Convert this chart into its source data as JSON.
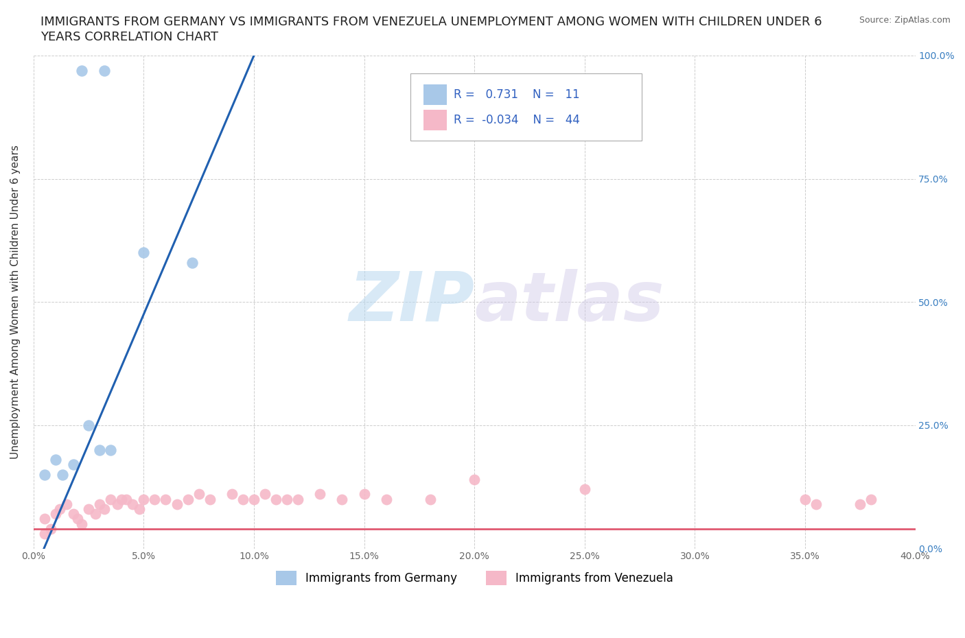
{
  "title_line1": "IMMIGRANTS FROM GERMANY VS IMMIGRANTS FROM VENEZUELA UNEMPLOYMENT AMONG WOMEN WITH CHILDREN UNDER 6",
  "title_line2": "YEARS CORRELATION CHART",
  "source": "Source: ZipAtlas.com",
  "ylabel": "Unemployment Among Women with Children Under 6 years",
  "xlim": [
    0.0,
    0.4
  ],
  "ylim": [
    0.0,
    1.0
  ],
  "xticks": [
    0.0,
    0.05,
    0.1,
    0.15,
    0.2,
    0.25,
    0.3,
    0.35,
    0.4
  ],
  "xticklabels": [
    "0.0%",
    "5.0%",
    "10.0%",
    "15.0%",
    "20.0%",
    "25.0%",
    "30.0%",
    "35.0%",
    "40.0%"
  ],
  "yticks": [
    0.0,
    0.25,
    0.5,
    0.75,
    1.0
  ],
  "yticklabels": [
    "0.0%",
    "25.0%",
    "50.0%",
    "75.0%",
    "100.0%"
  ],
  "germany_x": [
    0.022,
    0.032,
    0.05,
    0.072,
    0.025,
    0.03,
    0.035,
    0.013,
    0.01,
    0.005,
    0.018
  ],
  "germany_y": [
    0.97,
    0.97,
    0.6,
    0.58,
    0.25,
    0.2,
    0.2,
    0.15,
    0.18,
    0.15,
    0.17
  ],
  "venezuela_x": [
    0.005,
    0.005,
    0.008,
    0.01,
    0.012,
    0.015,
    0.018,
    0.02,
    0.022,
    0.025,
    0.028,
    0.03,
    0.032,
    0.035,
    0.038,
    0.04,
    0.042,
    0.045,
    0.048,
    0.05,
    0.055,
    0.06,
    0.065,
    0.07,
    0.075,
    0.08,
    0.09,
    0.095,
    0.1,
    0.105,
    0.11,
    0.115,
    0.12,
    0.13,
    0.14,
    0.15,
    0.16,
    0.18,
    0.2,
    0.25,
    0.35,
    0.355,
    0.375,
    0.38
  ],
  "venezuela_y": [
    0.06,
    0.03,
    0.04,
    0.07,
    0.08,
    0.09,
    0.07,
    0.06,
    0.05,
    0.08,
    0.07,
    0.09,
    0.08,
    0.1,
    0.09,
    0.1,
    0.1,
    0.09,
    0.08,
    0.1,
    0.1,
    0.1,
    0.09,
    0.1,
    0.11,
    0.1,
    0.11,
    0.1,
    0.1,
    0.11,
    0.1,
    0.1,
    0.1,
    0.11,
    0.1,
    0.11,
    0.1,
    0.1,
    0.14,
    0.12,
    0.1,
    0.09,
    0.09,
    0.1
  ],
  "germany_color": "#a8c8e8",
  "venezuela_color": "#f5b8c8",
  "germany_line_color": "#2060b0",
  "venezuela_line_color": "#e05870",
  "germany_R": 0.731,
  "germany_N": 11,
  "venezuela_R": -0.034,
  "venezuela_N": 44,
  "watermark_zip": "ZIP",
  "watermark_atlas": "atlas",
  "background_color": "#ffffff",
  "grid_color": "#c8c8c8",
  "title_fontsize": 13,
  "axis_label_fontsize": 11,
  "tick_fontsize": 10,
  "legend_fontsize": 12
}
